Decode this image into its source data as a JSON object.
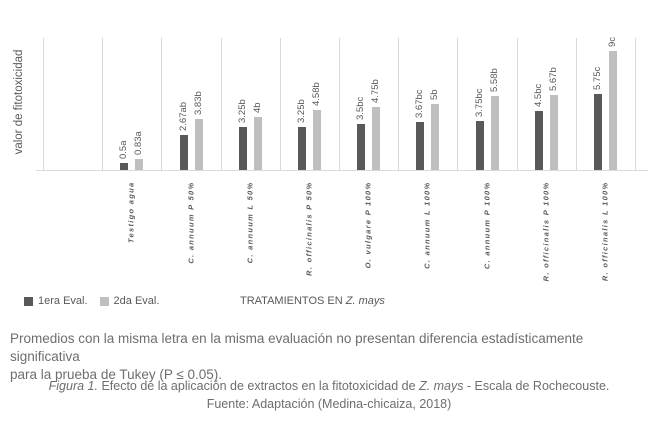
{
  "chart_data": {
    "type": "bar",
    "title": "",
    "ylabel": "valor de fitotoxicidad",
    "xlabel": "TRATAMIENTOS EN Z. mays",
    "ylim": [
      0,
      10
    ],
    "grid": "vertical category separators only",
    "legend_position": "bottom-left",
    "categories": [
      "Testigo agua",
      "C. annuum P 50%",
      "C. annuum L 50%",
      "R. officinalis P 50%",
      "O. vulgare P 100%",
      "C. annuum L 100%",
      "C. annuum P 100%",
      "R. officinalis P 100%",
      "R. officinalis L 100%"
    ],
    "series": [
      {
        "name": "1era Eval.",
        "color": "#595959",
        "values": [
          0.5,
          2.67,
          3.25,
          3.25,
          3.5,
          3.67,
          3.75,
          4.5,
          5.75
        ],
        "point_labels": [
          "0.5a",
          "2.67ab",
          "3.25b",
          "3.25b",
          "3.5bc",
          "3.67bc",
          "3.75bc",
          "4.5bc",
          "5.75c"
        ]
      },
      {
        "name": "2da Eval.",
        "color": "#bfbfbf",
        "values": [
          0.83,
          3.83,
          4,
          4.58,
          4.75,
          5,
          5.58,
          5.67,
          9
        ],
        "point_labels": [
          "0.83a",
          "3.83b",
          "4b",
          "4.58b",
          "4.75b",
          "5b",
          "5.58b",
          "5.67b",
          "9c"
        ]
      }
    ]
  },
  "labels": {
    "ylabel": "valor de fitotoxicidad",
    "xtitle_prefix": "TRATAMIENTOS EN ",
    "xtitle_species": "Z. mays"
  },
  "note": {
    "line1": "Promedios con la misma letra en la misma evaluación no presentan diferencia estadísticamente significativa",
    "line2": "para la prueba de Tukey (P ≤ 0.05)."
  },
  "caption": {
    "figura_label": "Figura 1.",
    "desc_pre": " Efecto de la aplicación de extractos en la fitotoxicidad de ",
    "species": "Z. mays",
    "desc_post": " - Escala de Rochecouste.",
    "source": "Fuente: Adaptación (Medina-chicaiza, 2018)"
  }
}
